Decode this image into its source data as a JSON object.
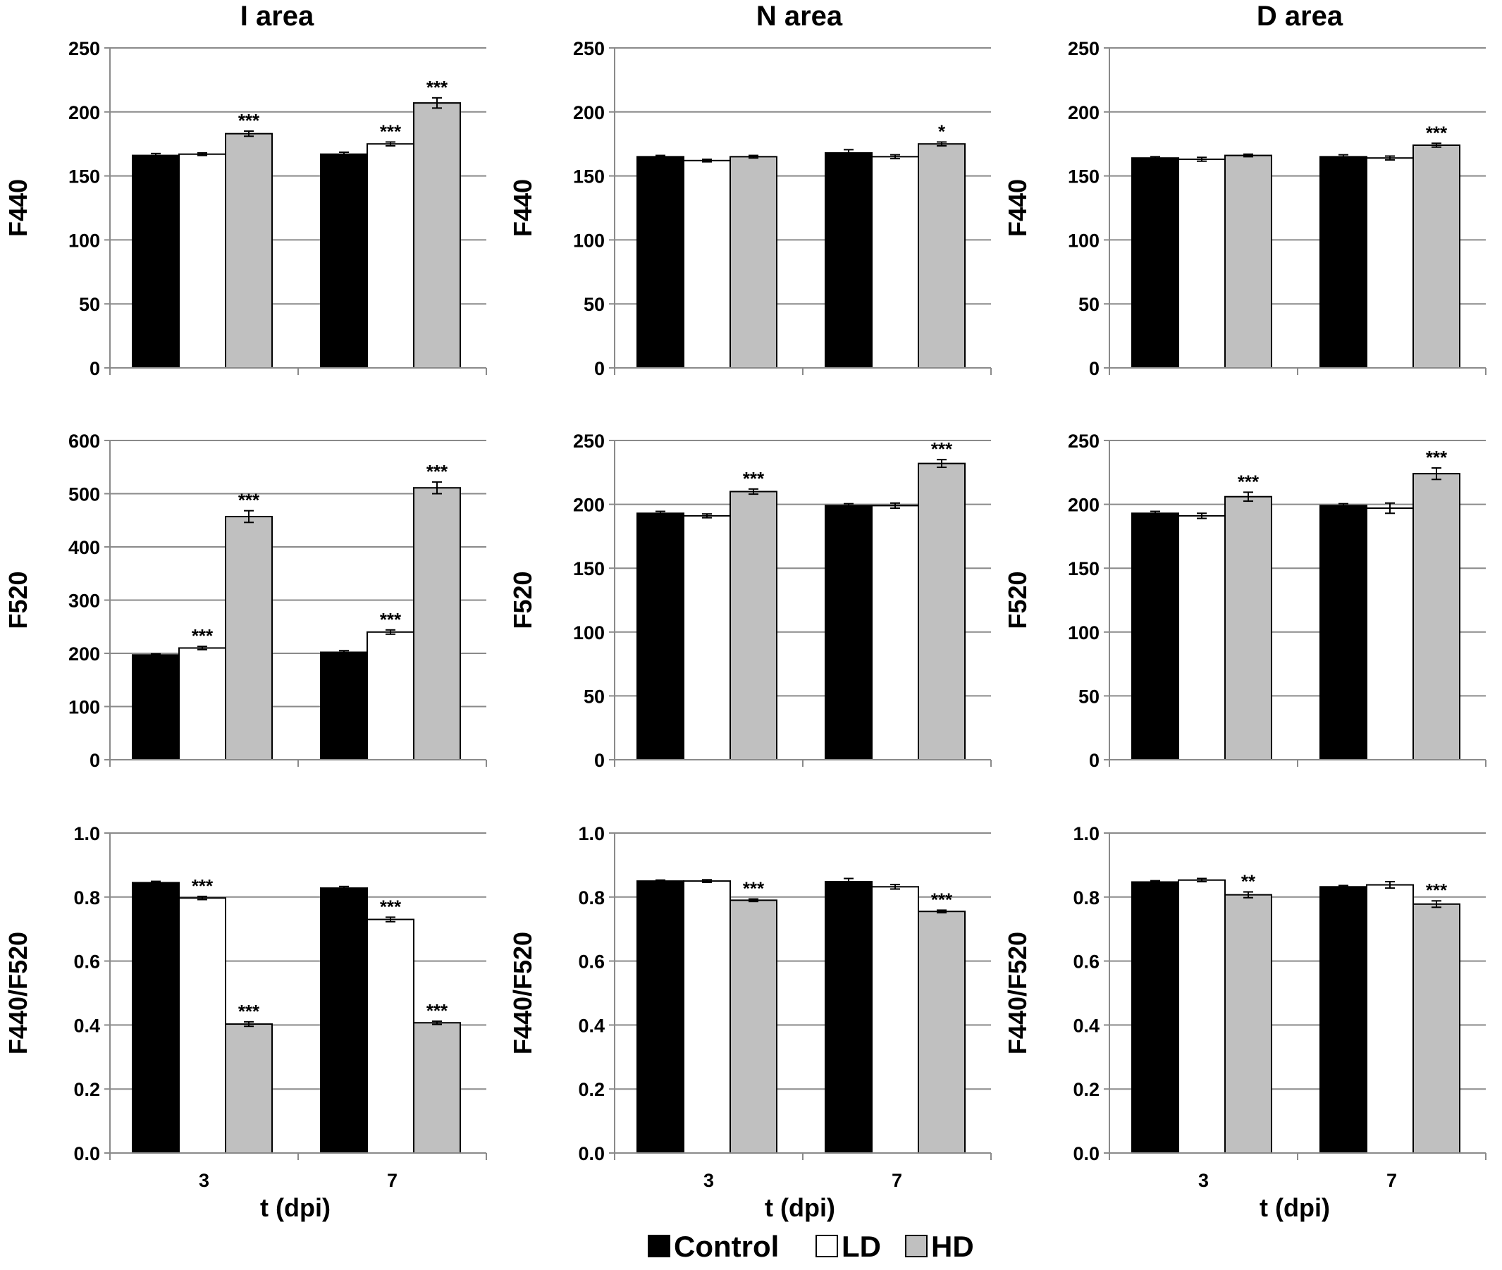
{
  "chart_data": {
    "type": "bar",
    "legend": {
      "position": "bottom-center",
      "entries": [
        {
          "name": "Control",
          "color": "#000000"
        },
        {
          "name": "LD",
          "color": "#ffffff"
        },
        {
          "name": "HD",
          "color": "#c0c0c0"
        }
      ]
    },
    "columns": [
      {
        "title": "I area"
      },
      {
        "title": "N area"
      },
      {
        "title": "D area"
      }
    ],
    "xlabel": "t (dpi)",
    "categories": [
      "3",
      "7"
    ],
    "panels": [
      {
        "id": "I-F440",
        "row": 0,
        "col": 0,
        "ylabel": "F440",
        "ylim": [
          0,
          250
        ],
        "yticks": [
          "0",
          "50",
          "100",
          "150",
          "200",
          "250"
        ],
        "series": [
          {
            "name": "Control",
            "values": [
              166,
              167
            ],
            "errors": [
              1.5,
              1.5
            ],
            "sig": [
              "",
              ""
            ]
          },
          {
            "name": "LD",
            "values": [
              167,
              175
            ],
            "errors": [
              1,
              1.5
            ],
            "sig": [
              "",
              "***"
            ]
          },
          {
            "name": "HD",
            "values": [
              183,
              207
            ],
            "errors": [
              2,
              4
            ],
            "sig": [
              "***",
              "***"
            ]
          }
        ]
      },
      {
        "id": "N-F440",
        "row": 0,
        "col": 1,
        "ylabel": "F440",
        "ylim": [
          0,
          250
        ],
        "yticks": [
          "0",
          "50",
          "100",
          "150",
          "200",
          "250"
        ],
        "series": [
          {
            "name": "Control",
            "values": [
              165,
              168
            ],
            "errors": [
              1,
              2.5
            ],
            "sig": [
              "",
              ""
            ]
          },
          {
            "name": "LD",
            "values": [
              162,
              165
            ],
            "errors": [
              1,
              1.5
            ],
            "sig": [
              "",
              ""
            ]
          },
          {
            "name": "HD",
            "values": [
              165,
              175
            ],
            "errors": [
              1,
              1.5
            ],
            "sig": [
              "",
              "*"
            ]
          }
        ]
      },
      {
        "id": "D-F440",
        "row": 0,
        "col": 2,
        "ylabel": "F440",
        "ylim": [
          0,
          250
        ],
        "yticks": [
          "0",
          "50",
          "100",
          "150",
          "200",
          "250"
        ],
        "series": [
          {
            "name": "Control",
            "values": [
              164,
              165
            ],
            "errors": [
              1,
              1.5
            ],
            "sig": [
              "",
              ""
            ]
          },
          {
            "name": "LD",
            "values": [
              163,
              164
            ],
            "errors": [
              1.5,
              1.5
            ],
            "sig": [
              "",
              ""
            ]
          },
          {
            "name": "HD",
            "values": [
              166,
              174
            ],
            "errors": [
              1,
              1.5
            ],
            "sig": [
              "",
              "***"
            ]
          }
        ]
      },
      {
        "id": "I-F520",
        "row": 1,
        "col": 0,
        "ylabel": "F520",
        "ylim": [
          0,
          600
        ],
        "yticks": [
          "0",
          "100",
          "200",
          "300",
          "400",
          "500",
          "600"
        ],
        "series": [
          {
            "name": "Control",
            "values": [
              197,
              202
            ],
            "errors": [
              2,
              3
            ],
            "sig": [
              "",
              ""
            ]
          },
          {
            "name": "LD",
            "values": [
              210,
              240
            ],
            "errors": [
              3,
              4
            ],
            "sig": [
              "***",
              "***"
            ]
          },
          {
            "name": "HD",
            "values": [
              457,
              511
            ],
            "errors": [
              11,
              11
            ],
            "sig": [
              "***",
              "***"
            ]
          }
        ]
      },
      {
        "id": "N-F520",
        "row": 1,
        "col": 1,
        "ylabel": "F520",
        "ylim": [
          0,
          250
        ],
        "yticks": [
          "0",
          "50",
          "100",
          "150",
          "200",
          "250"
        ],
        "series": [
          {
            "name": "Control",
            "values": [
              193,
              199
            ],
            "errors": [
              1.5,
              1.5
            ],
            "sig": [
              "",
              ""
            ]
          },
          {
            "name": "LD",
            "values": [
              191,
              199
            ],
            "errors": [
              1.5,
              2
            ],
            "sig": [
              "",
              ""
            ]
          },
          {
            "name": "HD",
            "values": [
              210,
              232
            ],
            "errors": [
              2,
              3
            ],
            "sig": [
              "***",
              "***"
            ]
          }
        ]
      },
      {
        "id": "D-F520",
        "row": 1,
        "col": 2,
        "ylabel": "F520",
        "ylim": [
          0,
          250
        ],
        "yticks": [
          "0",
          "50",
          "100",
          "150",
          "200",
          "250"
        ],
        "series": [
          {
            "name": "Control",
            "values": [
              193,
              199
            ],
            "errors": [
              1.5,
              1.5
            ],
            "sig": [
              "",
              ""
            ]
          },
          {
            "name": "LD",
            "values": [
              191,
              197
            ],
            "errors": [
              2,
              4
            ],
            "sig": [
              "",
              ""
            ]
          },
          {
            "name": "HD",
            "values": [
              206,
              224
            ],
            "errors": [
              3.5,
              4.5
            ],
            "sig": [
              "***",
              "***"
            ]
          }
        ]
      },
      {
        "id": "I-ratio",
        "row": 2,
        "col": 0,
        "ylabel": "F440/F520",
        "ylim": [
          0,
          1
        ],
        "yticks": [
          "0.0",
          "0.2",
          "0.4",
          "0.6",
          "0.8",
          "1.0"
        ],
        "series": [
          {
            "name": "Control",
            "values": [
              0.845,
              0.828
            ],
            "errors": [
              0.004,
              0.005
            ],
            "sig": [
              "",
              ""
            ]
          },
          {
            "name": "LD",
            "values": [
              0.797,
              0.73
            ],
            "errors": [
              0.005,
              0.007
            ],
            "sig": [
              "***",
              "***"
            ]
          },
          {
            "name": "HD",
            "values": [
              0.403,
              0.407
            ],
            "errors": [
              0.007,
              0.005
            ],
            "sig": [
              "***",
              "***"
            ]
          }
        ]
      },
      {
        "id": "N-ratio",
        "row": 2,
        "col": 1,
        "ylabel": "F440/F520",
        "ylim": [
          0,
          1
        ],
        "yticks": [
          "0.0",
          "0.2",
          "0.4",
          "0.6",
          "0.8",
          "1.0"
        ],
        "series": [
          {
            "name": "Control",
            "values": [
              0.85,
              0.848
            ],
            "errors": [
              0.003,
              0.01
            ],
            "sig": [
              "",
              ""
            ]
          },
          {
            "name": "LD",
            "values": [
              0.85,
              0.832
            ],
            "errors": [
              0.004,
              0.007
            ],
            "sig": [
              "",
              ""
            ]
          },
          {
            "name": "HD",
            "values": [
              0.79,
              0.755
            ],
            "errors": [
              0.004,
              0.004
            ],
            "sig": [
              "***",
              "***"
            ]
          }
        ]
      },
      {
        "id": "D-ratio",
        "row": 2,
        "col": 2,
        "ylabel": "F440/F520",
        "ylim": [
          0,
          1
        ],
        "yticks": [
          "0.0",
          "0.2",
          "0.4",
          "0.6",
          "0.8",
          "1.0"
        ],
        "series": [
          {
            "name": "Control",
            "values": [
              0.847,
              0.832
            ],
            "errors": [
              0.004,
              0.004
            ],
            "sig": [
              "",
              ""
            ]
          },
          {
            "name": "LD",
            "values": [
              0.853,
              0.838
            ],
            "errors": [
              0.005,
              0.01
            ],
            "sig": [
              "",
              ""
            ]
          },
          {
            "name": "HD",
            "values": [
              0.807,
              0.778
            ],
            "errors": [
              0.009,
              0.01
            ],
            "sig": [
              "**",
              "***"
            ]
          }
        ]
      }
    ]
  }
}
